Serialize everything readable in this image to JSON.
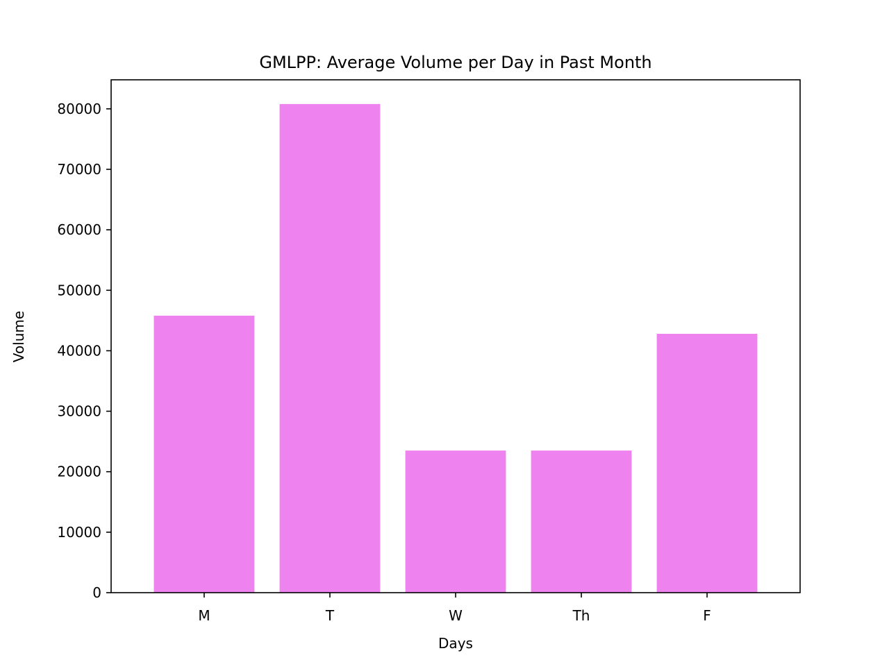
{
  "chart_data": {
    "type": "bar",
    "title": "GMLPP: Average Volume per Day in Past Month",
    "xlabel": "Days",
    "ylabel": "Volume",
    "categories": [
      "M",
      "T",
      "W",
      "Th",
      "F"
    ],
    "values": [
      45800,
      80800,
      23500,
      23500,
      42800
    ],
    "ylim": [
      0,
      84800
    ],
    "yticks": [
      0,
      10000,
      20000,
      30000,
      40000,
      50000,
      60000,
      70000,
      80000
    ],
    "ytick_labels": [
      "0",
      "10000",
      "20000",
      "30000",
      "40000",
      "50000",
      "60000",
      "70000",
      "80000"
    ],
    "bar_color": "#ee82ee",
    "grid": false,
    "legend": "none"
  }
}
